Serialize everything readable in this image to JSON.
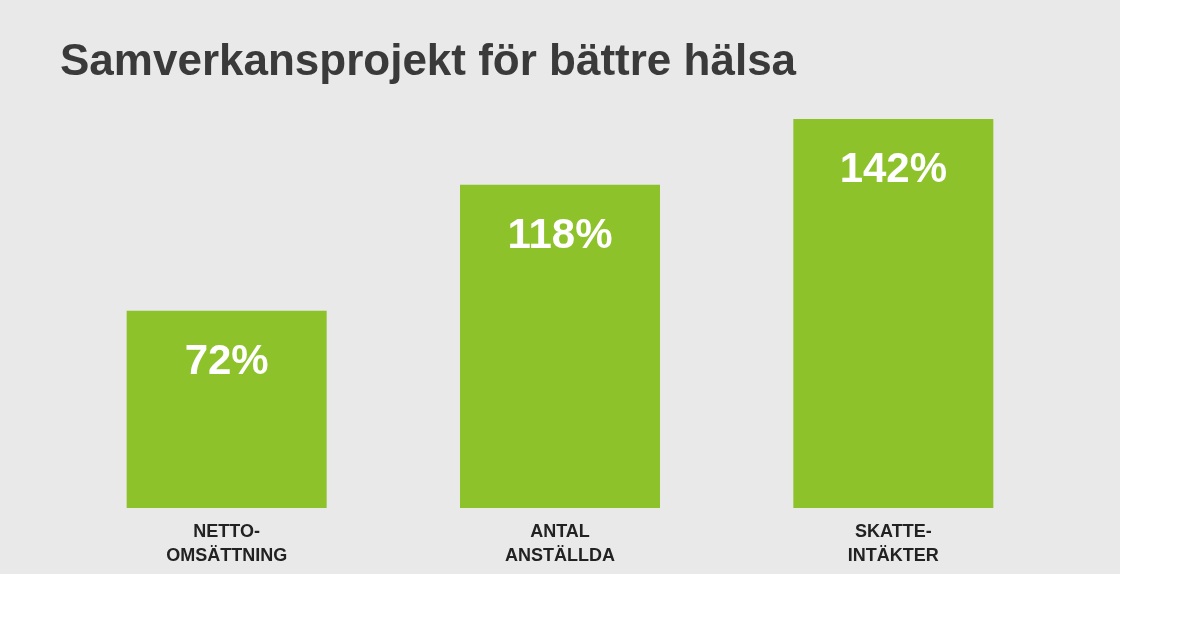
{
  "chart_data": {
    "type": "bar",
    "title": "Samverkansprojekt för bättre hälsa",
    "categories": [
      "NETTO-OMSÄTTNING",
      "ANTAL ANSTÄLLDA",
      "SKATTE-INTÄKTER"
    ],
    "values": [
      72,
      118,
      142
    ],
    "value_labels": [
      "72%",
      "118%",
      "142%"
    ],
    "color": "#8dc22a"
  }
}
